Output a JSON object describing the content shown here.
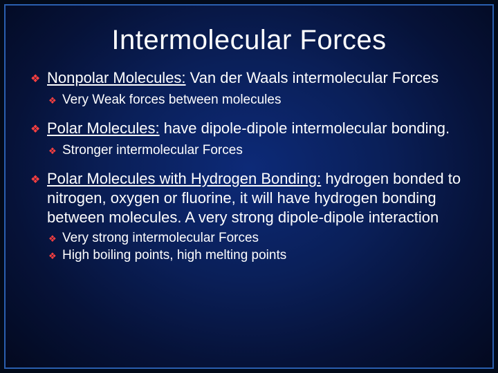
{
  "slide": {
    "title": "Intermolecular Forces",
    "title_color": "#ffffff",
    "title_fontsize": 40,
    "background_gradient_inner": "#0d2a78",
    "background_gradient_outer": "#03091f",
    "border_color": "#2a5fb0",
    "bullet_color": "#ff4040",
    "body_color": "#ffffff",
    "l1_fontsize": 22,
    "l2_fontsize": 19,
    "items": [
      {
        "lead": "Nonpolar Molecules:",
        "rest": " Van der Waals intermolecular Forces",
        "sub": [
          "Very Weak forces between molecules"
        ]
      },
      {
        "lead": "Polar Molecules:",
        "rest": " have dipole-dipole intermolecular bonding.",
        "sub": [
          "Stronger intermolecular Forces"
        ]
      },
      {
        "lead": "Polar Molecules with Hydrogen Bonding:",
        "rest": " hydrogen bonded to nitrogen, oxygen or fluorine, it will have hydrogen bonding between molecules. A very strong dipole-dipole interaction",
        "sub": [
          "Very strong intermolecular Forces",
          "High boiling points, high melting points"
        ]
      }
    ]
  }
}
